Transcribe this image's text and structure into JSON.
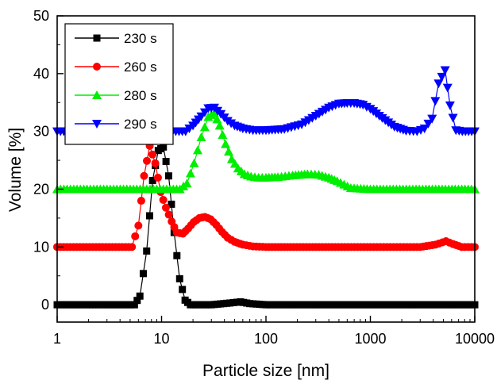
{
  "chart_data": {
    "type": "line",
    "xlabel": "Particle size [nm]",
    "ylabel": "Volume [%]",
    "xscale": "log",
    "xlim": [
      1,
      10000
    ],
    "ylim": [
      -3,
      50
    ],
    "xticks": [
      1,
      10,
      100,
      1000,
      10000
    ],
    "xtick_labels": [
      "1",
      "10",
      "100",
      "1000",
      "10000"
    ],
    "yticks": [
      0,
      10,
      20,
      30,
      40,
      50
    ],
    "ytick_labels": [
      "0",
      "10",
      "20",
      "30",
      "40",
      "50"
    ],
    "grid": false,
    "legend_position": "top-left",
    "series": [
      {
        "name": "230 s",
        "color": "#000000",
        "marker": "square",
        "x": [
          1,
          5.5,
          6.2,
          7.2,
          8.2,
          9.3,
          10.4,
          11.7,
          13.2,
          14.9,
          16.8,
          18.9,
          21.3,
          30,
          45,
          57,
          70,
          100,
          10000
        ],
        "y": [
          0,
          0,
          1.5,
          9.3,
          21.5,
          26.7,
          27.3,
          22.3,
          12.5,
          4.5,
          0.8,
          0,
          0,
          0,
          0.3,
          0.5,
          0.2,
          0,
          0
        ]
      },
      {
        "name": "260 s",
        "color": "#ff0000",
        "marker": "circle",
        "x": [
          1,
          5.2,
          6.0,
          6.8,
          7.7,
          8.7,
          9.8,
          11.0,
          12.5,
          14.0,
          16.0,
          18.0,
          20.3,
          23.0,
          26.0,
          29.5,
          33.5,
          38,
          43,
          50,
          60,
          75,
          100,
          150,
          300,
          1000,
          3000,
          4200,
          5300,
          6200,
          7500,
          10000
        ],
        "y": [
          10,
          10,
          13.7,
          22.3,
          27.5,
          24.5,
          19.5,
          16.8,
          14.4,
          12.5,
          12.3,
          13.2,
          14.3,
          15.0,
          15.2,
          14.8,
          13.8,
          12.6,
          11.6,
          10.9,
          10.4,
          10.1,
          10,
          10,
          10,
          10,
          10,
          10.4,
          11.0,
          10.5,
          10,
          10
        ]
      },
      {
        "name": "280 s",
        "color": "#00ee00",
        "marker": "triangle-up",
        "x": [
          1,
          15,
          17.5,
          20.5,
          24,
          28,
          32,
          36,
          41,
          47,
          54,
          62,
          72,
          85,
          100,
          130,
          180,
          250,
          320,
          400,
          480,
          560,
          650,
          1000,
          10000
        ],
        "y": [
          20,
          20,
          21,
          24.5,
          29,
          32.5,
          33.2,
          31,
          27.8,
          25.2,
          23.6,
          22.6,
          22.2,
          22.0,
          22.0,
          22.1,
          22.4,
          22.6,
          22.5,
          22.0,
          21.4,
          20.8,
          20.2,
          20,
          20
        ]
      },
      {
        "name": "290 s",
        "color": "#0000ff",
        "marker": "triangle-down",
        "x": [
          1,
          17,
          20,
          24,
          28,
          32,
          37,
          43,
          50,
          60,
          75,
          100,
          150,
          220,
          300,
          400,
          500,
          600,
          700,
          850,
          1000,
          1300,
          1700,
          2200,
          2800,
          3300,
          3900,
          4500,
          5200,
          5800,
          6600,
          7600,
          10000
        ],
        "y": [
          30,
          30,
          31,
          32.6,
          34,
          34.1,
          33,
          31.8,
          31,
          30.5,
          30.2,
          30.2,
          30.4,
          31.2,
          32.7,
          34.1,
          34.8,
          34.9,
          34.9,
          34.6,
          33.9,
          32.3,
          30.8,
          30.1,
          30,
          30.5,
          32.2,
          38.3,
          40.6,
          34.5,
          30.2,
          30,
          30
        ]
      }
    ]
  }
}
